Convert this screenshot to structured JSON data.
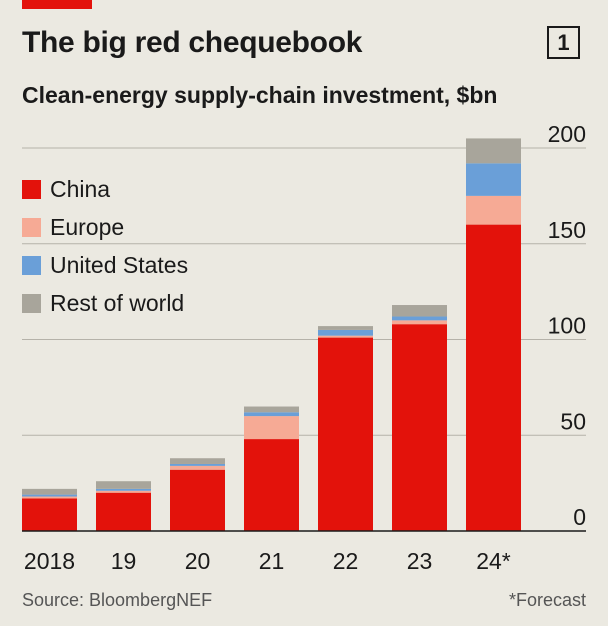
{
  "header": {
    "title": "The big red chequebook",
    "chart_number": "1",
    "subtitle": "Clean-energy supply-chain investment, $bn"
  },
  "legend": [
    {
      "label": "China",
      "color": "#e3120b"
    },
    {
      "label": "Europe",
      "color": "#f6aa95"
    },
    {
      "label": "United States",
      "color": "#6a9fd8"
    },
    {
      "label": "Rest of world",
      "color": "#a8a59b"
    }
  ],
  "footer": {
    "source": "Source: BloombergNEF",
    "note": "*Forecast"
  },
  "chart_data": {
    "type": "bar",
    "stacked": true,
    "categories": [
      "2018",
      "19",
      "20",
      "21",
      "22",
      "23",
      "24*"
    ],
    "series": [
      {
        "name": "China",
        "color": "#e3120b",
        "values": [
          17,
          20,
          32,
          48,
          101,
          108,
          160
        ]
      },
      {
        "name": "Europe",
        "color": "#f6aa95",
        "values": [
          1,
          1,
          2,
          12,
          1,
          2,
          15
        ]
      },
      {
        "name": "United States",
        "color": "#6a9fd8",
        "values": [
          1,
          1,
          1,
          2,
          3,
          2,
          17
        ]
      },
      {
        "name": "Rest of world",
        "color": "#a8a59b",
        "values": [
          3,
          4,
          3,
          3,
          2,
          6,
          13
        ]
      }
    ],
    "yticks": [
      0,
      50,
      100,
      150,
      200
    ],
    "ylim": [
      0,
      200
    ],
    "y_axis_side": "right",
    "grid": true,
    "legend_position": "top-left"
  }
}
